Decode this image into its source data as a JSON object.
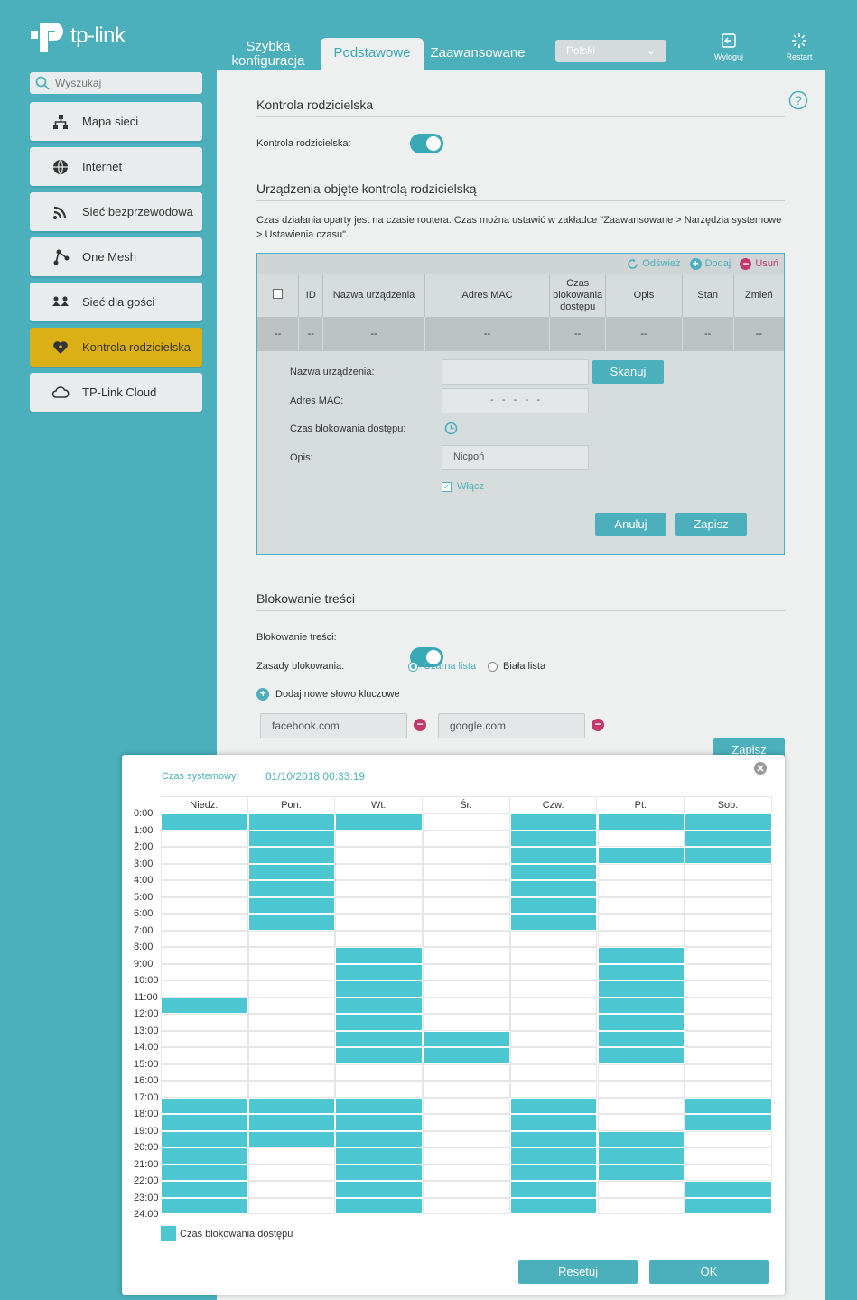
{
  "brand": {
    "logo_text": "tp-link"
  },
  "top_tabs": {
    "quick": "Szybka konfiguracja",
    "basic": "Podstawowe",
    "advanced": "Zaawansowane"
  },
  "language": "Polski",
  "top_buttons": {
    "logout": "Wyloguj",
    "restart": "Restart"
  },
  "search": {
    "placeholder": "Wyszukaj"
  },
  "sidebar": {
    "items": [
      {
        "label": "Mapa sieci",
        "icon": "network-map-icon"
      },
      {
        "label": "Internet",
        "icon": "globe-icon"
      },
      {
        "label": "Sieć bezprzewodowa",
        "icon": "wireless-icon"
      },
      {
        "label": "One Mesh",
        "icon": "mesh-icon"
      },
      {
        "label": "Sieć dla gości",
        "icon": "guest-icon"
      },
      {
        "label": "Kontrola rodzicielska",
        "icon": "heart-icon"
      },
      {
        "label": "TP-Link Cloud",
        "icon": "cloud-icon"
      }
    ]
  },
  "parental": {
    "title": "Kontrola rodzicielska",
    "toggle_label": "Kontrola rodzicielska:",
    "toggle_on": true,
    "devices_title": "Urządzenia objęte kontrolą rodzicielską",
    "info": "Czas działania oparty jest na czasie routera. Czas można ustawić w zakładce \"Zaawansowane > Narzędzia systemowe > Ustawienia czasu\".",
    "toolbar": {
      "refresh": "Odśwież",
      "add": "Dodaj",
      "delete": "Usuń"
    },
    "columns": [
      "ID",
      "Nazwa urządzenia",
      "Adres MAC",
      "Czas blokowania dostępu",
      "Opis",
      "Stan",
      "Zmień"
    ],
    "row": [
      "--",
      "--",
      "--",
      "--",
      "--",
      "--",
      "--",
      "--"
    ],
    "form": {
      "name_label": "Nazwa urządzenia:",
      "name_value": "",
      "scan": "Skanuj",
      "mac_label": "Adres MAC:",
      "mac_value": "-   -   -   -   -",
      "time_label": "Czas blokowania dostępu:",
      "desc_label": "Opis:",
      "desc_value": "Nicpoń",
      "enable": "Włącz",
      "cancel": "Anuluj",
      "save": "Zapisz"
    }
  },
  "content_block": {
    "title": "Blokowanie treści",
    "toggle_label": "Blokowanie treści:",
    "toggle_on": true,
    "rules_label": "Zasady blokowania:",
    "blacklist": "Czarna lista",
    "whitelist": "Biała lista",
    "add_keyword": "Dodaj nowe słowo kluczowe",
    "keywords": [
      "facebook.com",
      "google.com"
    ],
    "save": "Zapisz"
  },
  "schedule": {
    "time_label": "Czas systemowy:",
    "time_value": "01/10/2018 00:33:19",
    "days": [
      "Niedz.",
      "Pon.",
      "Wt.",
      "Śr.",
      "Czw.",
      "Pt.",
      "Sob."
    ],
    "hours": [
      "0:00",
      "1:00",
      "2:00",
      "3:00",
      "4:00",
      "5:00",
      "6:00",
      "7:00",
      "8:00",
      "9:00",
      "10:00",
      "11:00",
      "12:00",
      "13:00",
      "14:00",
      "15:00",
      "16:00",
      "17:00",
      "18:00",
      "19:00",
      "20:00",
      "21:00",
      "22:00",
      "23:00",
      "24:00"
    ],
    "blocked": [
      [
        0,
        11,
        17,
        18,
        19,
        20,
        21,
        22,
        23
      ],
      [
        0,
        1,
        2,
        3,
        4,
        5,
        6,
        17,
        18,
        19
      ],
      [
        0,
        8,
        9,
        10,
        11,
        12,
        13,
        14,
        17,
        18,
        19,
        20,
        21,
        22,
        23
      ],
      [
        13,
        14
      ],
      [
        0,
        1,
        2,
        3,
        4,
        5,
        6,
        17,
        18,
        19,
        20,
        21,
        22,
        23
      ],
      [
        0,
        2,
        8,
        9,
        10,
        11,
        12,
        13,
        14,
        19,
        20,
        21
      ],
      [
        0,
        1,
        2,
        17,
        18,
        22,
        23
      ]
    ],
    "legend": "Czas blokowania dostępu",
    "reset": "Resetuj",
    "ok": "OK",
    "accent": "#4cc6d1"
  }
}
